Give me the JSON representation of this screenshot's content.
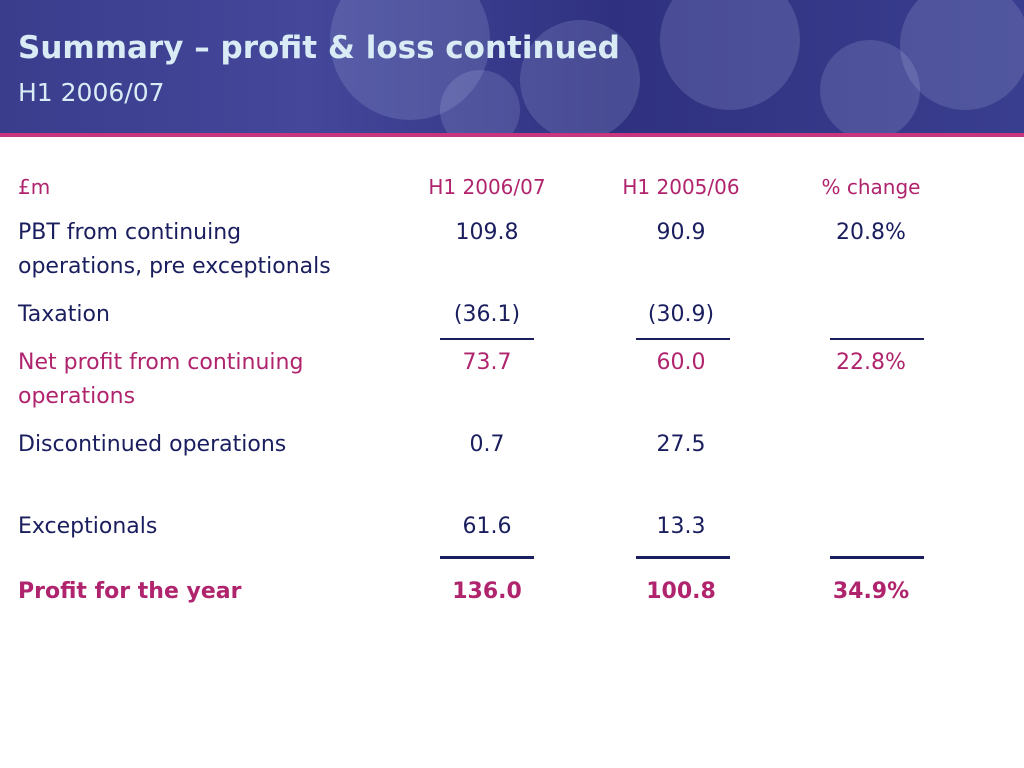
{
  "header": {
    "title": "Summary – profit & loss continued",
    "subtitle": "H1 2006/07"
  },
  "table": {
    "columns": [
      "£m",
      "H1 2006/07",
      "H1 2005/06",
      "% change"
    ],
    "rows": [
      {
        "label_line1": "PBT from continuing",
        "label_line2": "operations, pre exceptionals",
        "v1": "109.8",
        "v2": "90.9",
        "v3": "20.8%"
      },
      {
        "label_line1": "Taxation",
        "v1": "(36.1)",
        "v2": "(30.9)",
        "v3": ""
      },
      {
        "label_line1": "Net profit from continuing",
        "label_line2": "operations",
        "v1": "73.7",
        "v2": "60.0",
        "v3": "22.8%"
      },
      {
        "label_line1": "Discontinued operations",
        "v1": "0.7",
        "v2": "27.5",
        "v3": ""
      },
      {
        "label_line1": "Exceptionals",
        "v1": "61.6",
        "v2": "13.3",
        "v3": ""
      },
      {
        "label_line1": "Profit for the year",
        "v1": "136.0",
        "v2": "100.8",
        "v3": "34.9%"
      }
    ]
  },
  "colors": {
    "header_bg": "#3a3c8c",
    "header_text": "#d9ecf6",
    "accent": "#b0246e",
    "body_text": "#1a1e5e"
  }
}
